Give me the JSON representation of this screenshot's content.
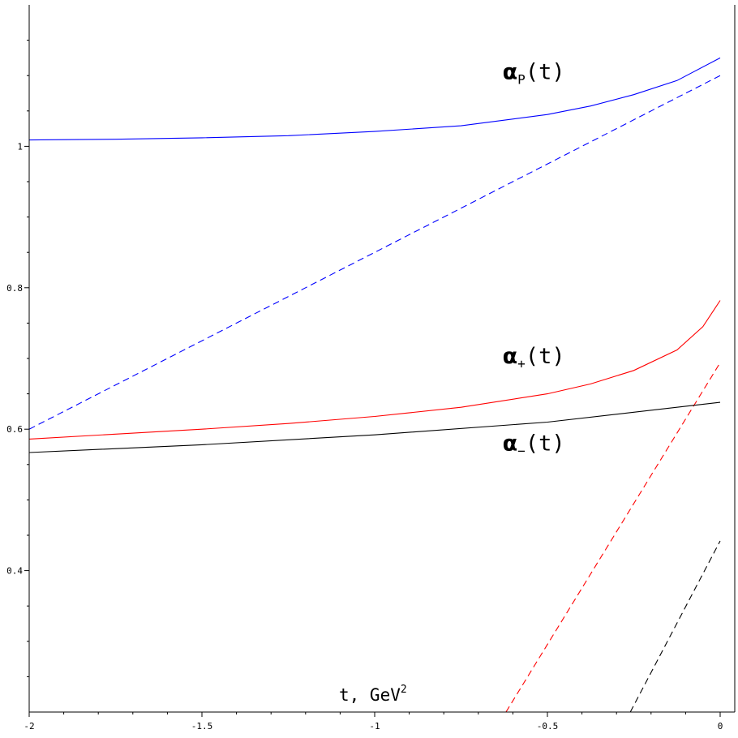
{
  "chart_data": {
    "type": "line",
    "xlabel": "t, GeV",
    "xlabel_sup": "2",
    "xlim": [
      -2,
      0
    ],
    "ylim": [
      0.2,
      1.2
    ],
    "x_ticks": [
      -2,
      -1.5,
      -1,
      -0.5,
      0
    ],
    "x_tick_labels": [
      "-2",
      "-1.5",
      "-1",
      "-0.5",
      "0"
    ],
    "y_ticks": [
      0.4,
      0.6,
      0.8,
      1
    ],
    "y_tick_labels": [
      "0.4",
      "0.6",
      "0.8",
      "1"
    ],
    "grid": false,
    "series": [
      {
        "color": "#0000ff",
        "style": "solid",
        "x": [
          -2,
          -1.75,
          -1.5,
          -1.25,
          -1,
          -0.75,
          -0.5,
          -0.375,
          -0.25,
          -0.125,
          0
        ],
        "y": [
          1.009,
          1.01,
          1.012,
          1.015,
          1.021,
          1.029,
          1.045,
          1.057,
          1.073,
          1.093,
          1.125
        ]
      },
      {
        "color": "#0000ff",
        "style": "dashed",
        "x": [
          -2,
          0
        ],
        "y": [
          0.6,
          1.1
        ]
      },
      {
        "color": "#ff0000",
        "style": "solid",
        "x": [
          -2,
          -1.75,
          -1.5,
          -1.25,
          -1,
          -0.75,
          -0.5,
          -0.375,
          -0.25,
          -0.125,
          -0.05,
          0
        ],
        "y": [
          0.586,
          0.593,
          0.6,
          0.608,
          0.618,
          0.631,
          0.65,
          0.664,
          0.683,
          0.712,
          0.745,
          0.782
        ]
      },
      {
        "color": "#ff0000",
        "style": "dashed",
        "x": [
          -0.62,
          0
        ],
        "y": [
          0.2,
          0.694
        ]
      },
      {
        "color": "#000000",
        "style": "solid",
        "x": [
          -2,
          -1.5,
          -1,
          -0.5,
          0
        ],
        "y": [
          0.567,
          0.578,
          0.592,
          0.61,
          0.638
        ]
      },
      {
        "color": "#000000",
        "style": "dashed",
        "x": [
          -0.26,
          0
        ],
        "y": [
          0.2,
          0.442
        ]
      }
    ],
    "annotations": [
      {
        "prefix": "α",
        "sub": "P",
        "suffix": "(t)",
        "x": -0.63,
        "y": 1.095
      },
      {
        "prefix": "α",
        "sub": "+",
        "suffix": "(t)",
        "x": -0.63,
        "y": 0.693
      },
      {
        "prefix": "α",
        "sub": "−",
        "suffix": "(t)",
        "x": -0.63,
        "y": 0.57
      }
    ]
  }
}
